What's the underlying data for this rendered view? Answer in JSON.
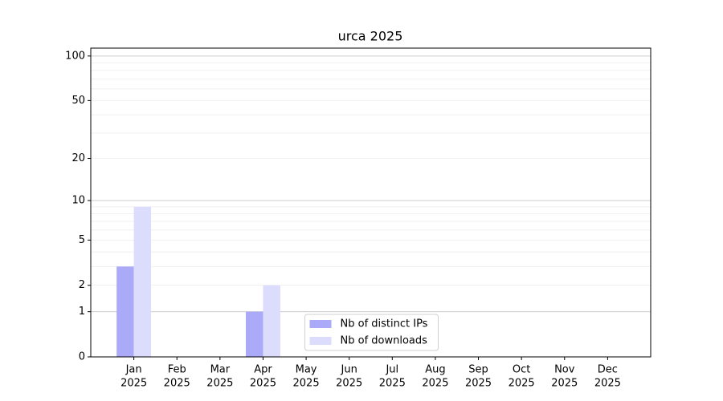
{
  "chart_data": {
    "type": "bar",
    "title": "urca 2025",
    "categories": [
      "Jan",
      "Feb",
      "Mar",
      "Apr",
      "May",
      "Jun",
      "Jul",
      "Aug",
      "Sep",
      "Oct",
      "Nov",
      "Dec"
    ],
    "category_years": [
      "2025",
      "2025",
      "2025",
      "2025",
      "2025",
      "2025",
      "2025",
      "2025",
      "2025",
      "2025",
      "2025",
      "2025"
    ],
    "series": [
      {
        "name": "Nb of distinct IPs",
        "color": "#aaaaf8",
        "values": [
          3,
          0,
          0,
          1,
          0,
          0,
          0,
          0,
          0,
          0,
          0,
          0
        ]
      },
      {
        "name": "Nb of downloads",
        "color": "#dcdcfc",
        "values": [
          9,
          0,
          0,
          2,
          0,
          0,
          0,
          0,
          0,
          0,
          0,
          0
        ]
      }
    ],
    "yscale": "log1p",
    "ylim": [
      0,
      113
    ],
    "yticks": [
      0,
      1,
      2,
      5,
      10,
      20,
      50,
      100
    ],
    "grid_major": [
      1,
      10,
      100
    ],
    "grid_minor": [
      2,
      3,
      4,
      5,
      6,
      7,
      8,
      9,
      20,
      30,
      40,
      50,
      60,
      70,
      80,
      90
    ],
    "legend": "lower center"
  }
}
